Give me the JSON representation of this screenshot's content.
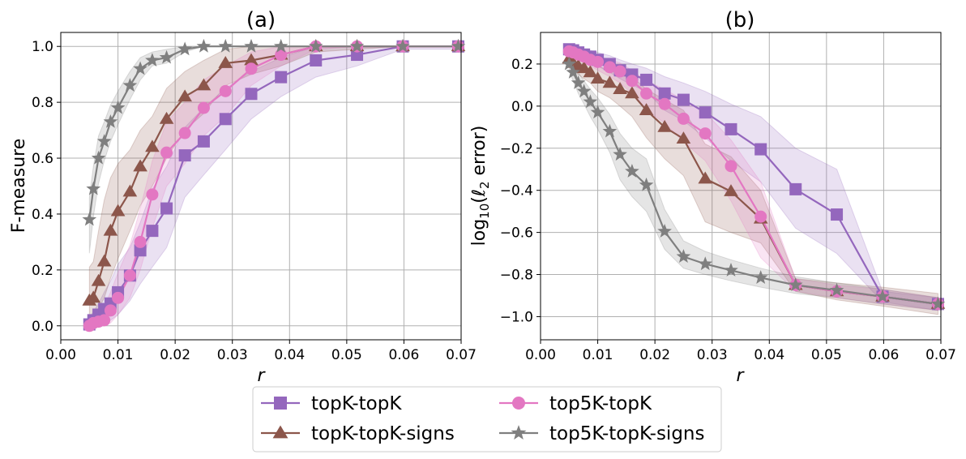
{
  "chart_data": [
    {
      "type": "line",
      "title": "(a)",
      "xlabel": "r",
      "ylabel": "F-measure",
      "xlim": [
        0.0,
        0.07
      ],
      "ylim": [
        -0.05,
        1.05
      ],
      "xticks": [
        0.0,
        0.01,
        0.02,
        0.03,
        0.04,
        0.05,
        0.06,
        0.07
      ],
      "xtick_labels": [
        "0.00",
        "0.01",
        "0.02",
        "0.03",
        "0.04",
        "0.05",
        "0.06",
        "0.07"
      ],
      "yticks": [
        0.0,
        0.2,
        0.4,
        0.6,
        0.8,
        1.0
      ],
      "ytick_labels": [
        "0.0",
        "0.2",
        "0.4",
        "0.6",
        "0.8",
        "1.0"
      ],
      "grid": true,
      "series": [
        {
          "name": "topK-topK",
          "color": "#9467bd",
          "marker": "square",
          "x": [
            0.005,
            0.0057,
            0.0066,
            0.0076,
            0.0087,
            0.01,
            0.0121,
            0.0139,
            0.016,
            0.0185,
            0.0217,
            0.025,
            0.0288,
            0.0333,
            0.0385,
            0.0446,
            0.0518,
            0.0598,
            0.0695
          ],
          "y": [
            0.005,
            0.02,
            0.04,
            0.06,
            0.08,
            0.12,
            0.18,
            0.27,
            0.34,
            0.42,
            0.61,
            0.66,
            0.74,
            0.83,
            0.89,
            0.95,
            0.97,
            1.0,
            1.0
          ],
          "lower": [
            0.0,
            0.0,
            0.0,
            0.01,
            0.02,
            0.04,
            0.09,
            0.15,
            0.21,
            0.28,
            0.46,
            0.54,
            0.63,
            0.74,
            0.82,
            0.89,
            0.93,
            0.99,
            0.99
          ],
          "upper": [
            0.03,
            0.05,
            0.08,
            0.12,
            0.16,
            0.22,
            0.28,
            0.37,
            0.49,
            0.57,
            0.71,
            0.78,
            0.85,
            0.91,
            0.96,
            1.0,
            1.0,
            1.0,
            1.0
          ]
        },
        {
          "name": "topK-topK-signs",
          "color": "#8c564b",
          "marker": "triangle",
          "x": [
            0.005,
            0.0057,
            0.0066,
            0.0076,
            0.0087,
            0.01,
            0.0121,
            0.0139,
            0.016,
            0.0185,
            0.0217,
            0.025,
            0.0288,
            0.0333,
            0.0385,
            0.0446,
            0.0518,
            0.0598,
            0.0695
          ],
          "y": [
            0.09,
            0.1,
            0.16,
            0.23,
            0.34,
            0.41,
            0.48,
            0.57,
            0.64,
            0.74,
            0.82,
            0.86,
            0.94,
            0.95,
            0.97,
            1.0,
            1.0,
            1.0,
            1.0
          ],
          "lower": [
            0.02,
            0.03,
            0.06,
            0.1,
            0.17,
            0.24,
            0.34,
            0.43,
            0.5,
            0.6,
            0.7,
            0.76,
            0.86,
            0.9,
            0.93,
            0.98,
            0.99,
            1.0,
            1.0
          ],
          "upper": [
            0.21,
            0.23,
            0.34,
            0.45,
            0.53,
            0.58,
            0.63,
            0.7,
            0.75,
            0.85,
            0.91,
            0.95,
            0.99,
            1.0,
            1.0,
            1.0,
            1.0,
            1.0,
            1.0
          ]
        },
        {
          "name": "top5K-topK",
          "color": "#e377c2",
          "marker": "circle",
          "x": [
            0.005,
            0.0057,
            0.0066,
            0.0076,
            0.0087,
            0.01,
            0.0121,
            0.0139,
            0.016,
            0.0185,
            0.0217,
            0.025,
            0.0288,
            0.0333,
            0.0385,
            0.0446,
            0.0518,
            0.0598,
            0.0695
          ],
          "y": [
            0.0,
            0.01,
            0.015,
            0.02,
            0.055,
            0.1,
            0.18,
            0.3,
            0.47,
            0.62,
            0.69,
            0.78,
            0.84,
            0.92,
            0.97,
            1.0,
            1.0,
            1.0,
            1.0
          ],
          "lower": [
            0.0,
            0.0,
            0.0,
            0.0,
            0.01,
            0.04,
            0.1,
            0.2,
            0.35,
            0.5,
            0.58,
            0.68,
            0.75,
            0.86,
            0.93,
            0.99,
            1.0,
            1.0,
            1.0
          ],
          "upper": [
            0.02,
            0.03,
            0.05,
            0.07,
            0.12,
            0.19,
            0.29,
            0.42,
            0.59,
            0.73,
            0.8,
            0.88,
            0.93,
            0.98,
            1.0,
            1.0,
            1.0,
            1.0,
            1.0
          ]
        },
        {
          "name": "top5K-topK-signs",
          "color": "#7f7f7f",
          "marker": "star",
          "x": [
            0.005,
            0.0057,
            0.0066,
            0.0076,
            0.0087,
            0.01,
            0.0121,
            0.0139,
            0.016,
            0.0185,
            0.0217,
            0.025,
            0.0288,
            0.0333,
            0.0385,
            0.0446,
            0.0518,
            0.0598,
            0.0695
          ],
          "y": [
            0.38,
            0.49,
            0.6,
            0.66,
            0.73,
            0.78,
            0.86,
            0.92,
            0.95,
            0.96,
            0.99,
            1.0,
            1.0,
            1.0,
            1.0,
            1.0,
            1.0,
            1.0,
            1.0
          ],
          "lower": [
            0.26,
            0.39,
            0.51,
            0.59,
            0.66,
            0.72,
            0.81,
            0.88,
            0.93,
            0.94,
            0.98,
            1.0,
            1.0,
            1.0,
            1.0,
            1.0,
            1.0,
            1.0,
            1.0
          ],
          "upper": [
            0.46,
            0.57,
            0.68,
            0.73,
            0.79,
            0.84,
            0.91,
            0.96,
            0.98,
            0.99,
            1.0,
            1.0,
            1.0,
            1.0,
            1.0,
            1.0,
            1.0,
            1.0,
            1.0
          ]
        }
      ]
    },
    {
      "type": "line",
      "title": "(b)",
      "xlabel": "r",
      "ylabel": "log10(ℓ2 error)",
      "ylabel_parts": {
        "pre": "log",
        "sub1": "10",
        "mid": "(",
        "ell": "ℓ",
        "sub2": "2",
        "post": " error)"
      },
      "xlim": [
        0.0,
        0.07
      ],
      "ylim": [
        -1.11,
        0.35
      ],
      "xticks": [
        0.0,
        0.01,
        0.02,
        0.03,
        0.04,
        0.05,
        0.06,
        0.07
      ],
      "xtick_labels": [
        "0.00",
        "0.01",
        "0.02",
        "0.03",
        "0.04",
        "0.05",
        "0.06",
        "0.07"
      ],
      "yticks": [
        -1.0,
        -0.8,
        -0.6,
        -0.4,
        -0.2,
        0.0,
        0.2
      ],
      "ytick_labels": [
        "−1.0",
        "−0.8",
        "−0.6",
        "−0.4",
        "−0.2",
        "0.0",
        "0.2"
      ],
      "grid": true,
      "series": [
        {
          "name": "topK-topK",
          "color": "#9467bd",
          "marker": "square",
          "x": [
            0.005,
            0.0057,
            0.0066,
            0.0076,
            0.0087,
            0.01,
            0.0121,
            0.0139,
            0.016,
            0.0185,
            0.0217,
            0.025,
            0.0288,
            0.0333,
            0.0385,
            0.0446,
            0.0518,
            0.0598,
            0.0695
          ],
          "y": [
            0.27,
            0.265,
            0.255,
            0.245,
            0.235,
            0.22,
            0.2,
            0.17,
            0.15,
            0.125,
            0.06,
            0.03,
            -0.03,
            -0.11,
            -0.205,
            -0.395,
            -0.515,
            -0.905,
            -0.94
          ],
          "lower": [
            0.245,
            0.24,
            0.23,
            0.22,
            0.205,
            0.19,
            0.16,
            0.13,
            0.1,
            0.07,
            -0.02,
            -0.07,
            -0.15,
            -0.26,
            -0.36,
            -0.58,
            -0.7,
            -0.93,
            -0.97
          ],
          "upper": [
            0.29,
            0.285,
            0.28,
            0.27,
            0.265,
            0.255,
            0.24,
            0.22,
            0.2,
            0.18,
            0.14,
            0.11,
            0.07,
            0.01,
            -0.05,
            -0.2,
            -0.3,
            -0.88,
            -0.91
          ]
        },
        {
          "name": "topK-topK-signs",
          "color": "#8c564b",
          "marker": "triangle",
          "x": [
            0.005,
            0.0057,
            0.0066,
            0.0076,
            0.0087,
            0.01,
            0.0121,
            0.0139,
            0.016,
            0.0185,
            0.0217,
            0.025,
            0.0288,
            0.0333,
            0.0385,
            0.0446,
            0.0518,
            0.0598,
            0.0695
          ],
          "y": [
            0.225,
            0.205,
            0.19,
            0.18,
            0.16,
            0.13,
            0.11,
            0.08,
            0.06,
            -0.02,
            -0.1,
            -0.155,
            -0.345,
            -0.405,
            -0.535,
            -0.85,
            -0.88,
            -0.905,
            -0.94
          ],
          "lower": [
            0.19,
            0.17,
            0.15,
            0.13,
            0.11,
            0.07,
            0.04,
            0.0,
            -0.05,
            -0.15,
            -0.25,
            -0.33,
            -0.55,
            -0.6,
            -0.65,
            -0.88,
            -0.92,
            -0.95,
            -0.99
          ],
          "upper": [
            0.26,
            0.24,
            0.23,
            0.22,
            0.21,
            0.19,
            0.17,
            0.15,
            0.14,
            0.08,
            0.03,
            -0.02,
            -0.18,
            -0.24,
            -0.4,
            -0.82,
            -0.84,
            -0.86,
            -0.89
          ]
        },
        {
          "name": "top5K-topK",
          "color": "#e377c2",
          "marker": "circle",
          "x": [
            0.005,
            0.0057,
            0.0066,
            0.0076,
            0.0087,
            0.01,
            0.0121,
            0.0139,
            0.016,
            0.0185,
            0.0217,
            0.025,
            0.0288,
            0.0333,
            0.0385,
            0.0446,
            0.0518,
            0.0598,
            0.0695
          ],
          "y": [
            0.26,
            0.255,
            0.245,
            0.235,
            0.22,
            0.21,
            0.185,
            0.165,
            0.12,
            0.06,
            0.01,
            -0.06,
            -0.13,
            -0.285,
            -0.525,
            -0.85,
            -0.88,
            -0.905,
            -0.94
          ],
          "lower": [
            0.235,
            0.23,
            0.22,
            0.21,
            0.19,
            0.17,
            0.14,
            0.11,
            0.06,
            -0.02,
            -0.08,
            -0.17,
            -0.26,
            -0.45,
            -0.72,
            -0.88,
            -0.91,
            -0.94,
            -0.97
          ],
          "upper": [
            0.28,
            0.275,
            0.27,
            0.26,
            0.25,
            0.24,
            0.22,
            0.205,
            0.17,
            0.12,
            0.08,
            0.03,
            -0.03,
            -0.16,
            -0.36,
            -0.82,
            -0.85,
            -0.87,
            -0.91
          ]
        },
        {
          "name": "top5K-topK-signs",
          "color": "#7f7f7f",
          "marker": "star",
          "x": [
            0.005,
            0.0057,
            0.0066,
            0.0076,
            0.0087,
            0.01,
            0.0121,
            0.0139,
            0.016,
            0.0185,
            0.0217,
            0.025,
            0.0288,
            0.0333,
            0.0385,
            0.0446,
            0.0518,
            0.0598,
            0.0695
          ],
          "y": [
            0.2,
            0.16,
            0.11,
            0.07,
            0.02,
            -0.03,
            -0.12,
            -0.23,
            -0.31,
            -0.375,
            -0.595,
            -0.715,
            -0.75,
            -0.78,
            -0.815,
            -0.85,
            -0.875,
            -0.905,
            -0.94
          ],
          "lower": [
            0.17,
            0.12,
            0.06,
            0.01,
            -0.05,
            -0.11,
            -0.22,
            -0.35,
            -0.43,
            -0.5,
            -0.68,
            -0.77,
            -0.8,
            -0.83,
            -0.86,
            -0.89,
            -0.91,
            -0.94,
            -0.97
          ],
          "upper": [
            0.23,
            0.2,
            0.16,
            0.12,
            0.08,
            0.04,
            -0.04,
            -0.13,
            -0.2,
            -0.25,
            -0.49,
            -0.64,
            -0.69,
            -0.73,
            -0.77,
            -0.81,
            -0.84,
            -0.87,
            -0.91
          ]
        }
      ]
    }
  ],
  "legend": {
    "placement": "bottom-center",
    "entries": [
      "topK-topK",
      "top5K-topK",
      "topK-topK-signs",
      "top5K-topK-signs"
    ]
  }
}
